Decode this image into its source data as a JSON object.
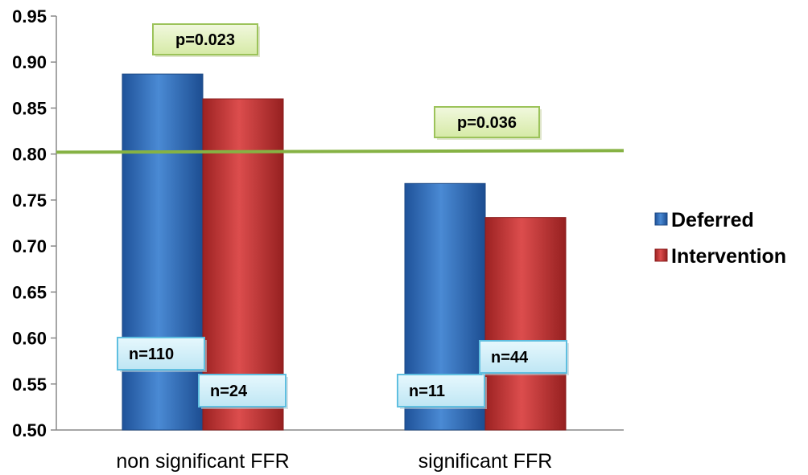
{
  "chart_data": {
    "type": "bar",
    "categories": [
      "non significant FFR",
      "significant FFR"
    ],
    "series": [
      {
        "name": "Deferred",
        "values": [
          0.887,
          0.768
        ],
        "n_labels": [
          "n=110",
          "n=11"
        ],
        "color": "#2e6db4"
      },
      {
        "name": "Intervention",
        "values": [
          0.86,
          0.731
        ],
        "n_labels": [
          "n=24",
          "n=44"
        ],
        "color": "#c73535"
      }
    ],
    "ylim": [
      0.5,
      0.95
    ],
    "yticks": [
      "0.50",
      "0.55",
      "0.60",
      "0.65",
      "0.70",
      "0.75",
      "0.80",
      "0.85",
      "0.90",
      "0.95"
    ],
    "reference_line": {
      "value": 0.802,
      "color": "#86b244"
    },
    "annotations": [
      {
        "text": "p=0.023",
        "category": 0
      },
      {
        "text": "p=0.036",
        "category": 1
      }
    ],
    "legend_position": "right",
    "grid": false
  }
}
